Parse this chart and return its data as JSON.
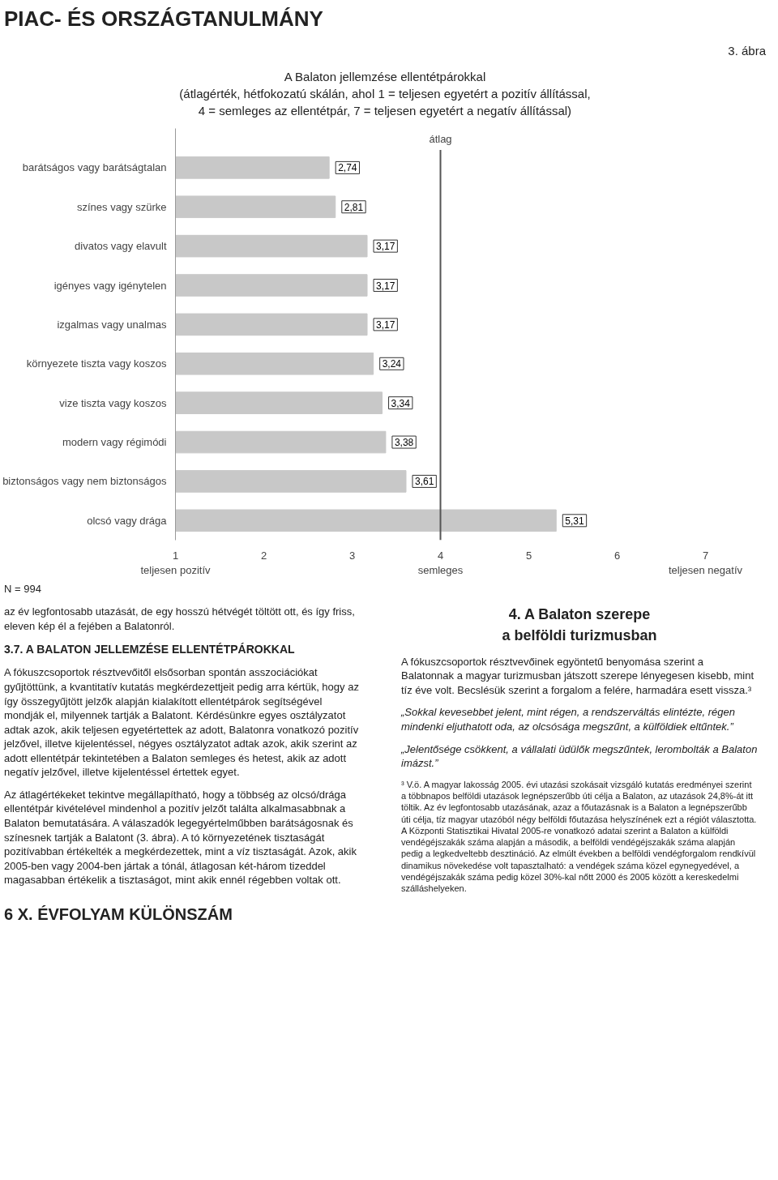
{
  "chart_data": {
    "type": "bar",
    "orientation": "horizontal",
    "title": "A Balaton jellemzése ellentétpárokkal",
    "subtitle": "(átlagérték, hétfokozatú skálán, ahol 1 = teljesen egyetért a pozitív állítással,\n4 = semleges az ellentétpár, 7 = teljesen egyetért a negatív állítással)",
    "categories": [
      "barátságos vagy barátságtalan",
      "színes vagy szürke",
      "divatos vagy elavult",
      "igényes vagy igénytelen",
      "izgalmas vagy unalmas",
      "környezete tiszta vagy koszos",
      "vize tiszta vagy koszos",
      "modern vagy régimódi",
      "biztonságos vagy nem biztonságos",
      "olcsó vagy drága"
    ],
    "values": [
      2.74,
      2.81,
      3.17,
      3.17,
      3.17,
      3.24,
      3.34,
      3.38,
      3.61,
      5.31
    ],
    "value_labels": [
      "2,74",
      "2,81",
      "3,17",
      "3,17",
      "3,17",
      "3,24",
      "3,34",
      "3,38",
      "3,61",
      "5,31"
    ],
    "color": "#c8c8c8",
    "xlim": [
      1,
      7
    ],
    "xticks": [
      {
        "value": 1,
        "label": "1\nteljesen pozitív"
      },
      2,
      3,
      {
        "value": 4,
        "label": "4\nsemleges"
      },
      5,
      6,
      {
        "value": 7,
        "label": "7\nteljesen negatív"
      }
    ],
    "ref_lines": [
      {
        "axis": "x",
        "value": 4,
        "label": "átlag",
        "color": "#555555"
      }
    ],
    "grid": false,
    "annotations": [
      "PIAC- ÉS ORSZÁGTANULMÁNY",
      "3. ábra",
      "N = 994",
      "az év legfontosabb utazását, de egy hosszú hétvégét töltött ott, és így friss, eleven kép él a fejében a Balatonról.",
      "3.7. A BALATON JELLEMZÉSE ELLENTÉTPÁROKKAL",
      "A fókuszcsoportok résztvevőitől elsősorban spontán asszociációkat gyűjtöttünk, a kvantitatív kutatás megkérdezettjeit pedig arra kértük, hogy az így összegyűjtött jelzők alapján kialakított ellentétpárok segítségével mondják el, milyennek tartják a Balatont. Kérdésünkre egyes osztályzatot adtak azok, akik teljesen egyetértettek az adott, Balatonra vonatkozó pozitív jelzővel, illetve kijelentéssel, négyes osztályzatot adtak azok, akik szerint az adott ellentétpár tekintetében a Balaton semleges és hetest, akik az adott negatív jelzővel, illetve kijelentéssel értettek egyet.",
      "Az átlagértékeket tekintve megállapítható, hogy a többség az olcsó/drága ellentétpár kivételével mindenhol a pozitív jelzőt találta alkalmasabbnak a Balaton bemutatására. A válaszadók legegyértelműbben barátságosnak és színesnek tartják a Balatont (3. ábra). A tó környezetének tisztaságát pozitívabban értékelték a megkérdezettek, mint a víz tisztaságát. Azok, akik 2005-ben vagy 2004-ben jártak a tónál, átlagosan két-három tizeddel magasabban értékelik a tisztaságot, mint akik ennél régebben voltak ott.",
      "4. A Balaton szerepe\na belföldi turizmusban",
      "A fókuszcsoportok résztvevőinek egyöntetű benyomása szerint a Balatonnak a magyar turizmusban játszott szerepe lényegesen kisebb, mint tíz éve volt. Becslésük szerint a forgalom a felére, harmadára esett vissza.³",
      "„Sokkal kevesebbet jelent, mint régen, a rendszerváltás elintézte, régen mindenki eljuthatott oda, az olcsósága megszűnt, a külföldiek eltűntek.”",
      "„Jelentősége csökkent, a vállalati üdülők megszűntek, lerombolták a Balaton imázst.”",
      "³ V.ö. A magyar lakosság 2005. évi utazási szokásait vizsgáló kutatás eredményei szerint a többnapos belföldi utazások legnépszerűbb úti célja a Balaton, az utazások 24,8%-át itt töltik. Az év legfontosabb utazásának, azaz a főutazásnak is a Balaton a legnépszerűbb úti célja, tíz magyar utazóból négy belföldi főutazása helyszínének ezt a régiót választotta. A Központi Statisztikai Hivatal 2005-re vonatkozó adatai szerint a Balaton a külföldi vendégéjszakák száma alapján a második, a belföldi vendégéjszakák száma alapján pedig a legkedveltebb desztináció. Az elmúlt években a belföldi vendégforgalom rendkívül dinamikus növekedése volt tapasztalható: a vendégek száma közel egynegyedével, a vendégéjszakák száma pedig közel 30%-kal nőtt 2000 és 2005 között a kereskedelmi szálláshelyeken.",
      "6   X. ÉVFOLYAM KÜLÖNSZÁM"
    ]
  }
}
